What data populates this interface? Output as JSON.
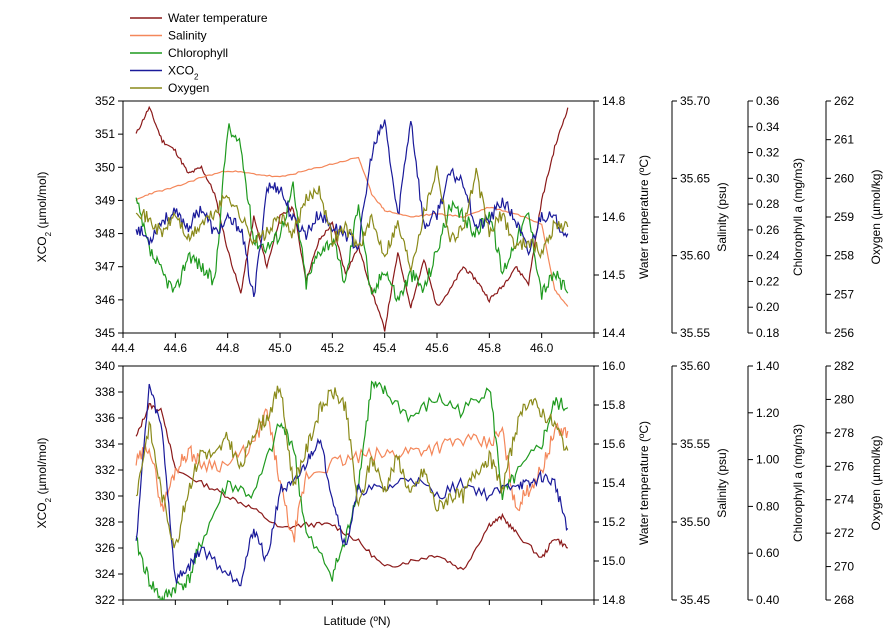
{
  "legend": [
    {
      "name": "Water temperature",
      "color": "#8b1a1a"
    },
    {
      "name": "Salinity",
      "color": "#f4875a"
    },
    {
      "name": "Chlorophyll",
      "color": "#1f9a1f"
    },
    {
      "name": "XCO",
      "sub": "2",
      "color": "#1a1a9a"
    },
    {
      "name": "Oxygen",
      "color": "#8a8a1a"
    }
  ],
  "xlabel": "Latitude (ºN)",
  "chart_data": [
    {
      "type": "line",
      "x_range": [
        44.4,
        46.2
      ],
      "x_ticks": [
        "44.4",
        "44.6",
        "44.8",
        "45.0",
        "45.2",
        "45.4",
        "45.6",
        "45.8",
        "46.0"
      ],
      "left_axis": {
        "label": "XCO",
        "label_sub": "2",
        "label_unit": " (µmol/mol)",
        "range": [
          345,
          352
        ],
        "ticks": [
          "345",
          "346",
          "347",
          "348",
          "349",
          "350",
          "351",
          "352"
        ]
      },
      "right_axes": [
        {
          "label": "Water temperature (ºC)",
          "range": [
            14.4,
            14.8
          ],
          "ticks": [
            "14.4",
            "14.5",
            "14.6",
            "14.7",
            "14.8"
          ]
        },
        {
          "label": "Salinity (psu)",
          "range": [
            35.55,
            35.7
          ],
          "ticks": [
            "35.55",
            "35.60",
            "35.65",
            "35.70"
          ]
        },
        {
          "label": "Chlorophyll a (mg/m3)",
          "range": [
            0.18,
            0.36
          ],
          "ticks": [
            "0.18",
            "0.20",
            "0.22",
            "0.24",
            "0.26",
            "0.28",
            "0.30",
            "0.32",
            "0.34",
            "0.36"
          ]
        },
        {
          "label": "Oxygen (µmol/kg)",
          "range": [
            256,
            262
          ],
          "ticks": [
            "256",
            "257",
            "258",
            "259",
            "260",
            "261",
            "262"
          ]
        }
      ],
      "series": [
        {
          "name": "Water temperature",
          "axis": 0,
          "color": "#8b1a1a",
          "noise": 0.12,
          "seed": 11,
          "x": [
            44.45,
            44.5,
            44.55,
            44.6,
            44.65,
            44.7,
            44.75,
            44.8,
            44.85,
            44.9,
            44.95,
            45.0,
            45.05,
            45.1,
            45.15,
            45.2,
            45.25,
            45.3,
            45.35,
            45.4,
            45.45,
            45.5,
            45.55,
            45.6,
            45.65,
            45.7,
            45.75,
            45.8,
            45.85,
            45.9,
            45.95,
            46.0,
            46.05,
            46.1
          ],
          "y": [
            351.0,
            351.8,
            350.8,
            350.5,
            349.8,
            350.0,
            349.2,
            347.5,
            346.2,
            348.5,
            347.0,
            348.5,
            348.8,
            346.6,
            347.8,
            348.3,
            346.8,
            347.6,
            346.3,
            345.1,
            347.4,
            345.8,
            347.2,
            345.8,
            346.3,
            347.0,
            346.6,
            346.0,
            346.4,
            347.0,
            346.5,
            349.0,
            350.6,
            351.8
          ]
        },
        {
          "name": "Salinity",
          "axis": 1,
          "color": "#f4875a",
          "noise": 0.05,
          "seed": 23,
          "x": [
            44.45,
            44.5,
            44.6,
            44.7,
            44.8,
            44.9,
            45.0,
            45.1,
            45.2,
            45.3,
            45.35,
            45.4,
            45.5,
            45.6,
            45.7,
            45.8,
            45.9,
            46.0,
            46.05,
            46.1
          ],
          "y": [
            349.0,
            349.2,
            349.4,
            349.7,
            349.9,
            349.8,
            349.7,
            349.9,
            350.1,
            350.3,
            349.2,
            348.7,
            348.5,
            348.6,
            348.5,
            348.8,
            348.6,
            348.3,
            346.3,
            345.8
          ]
        },
        {
          "name": "Chlorophyll",
          "axis": 2,
          "color": "#1f9a1f",
          "noise": 0.45,
          "seed": 37,
          "x": [
            44.45,
            44.5,
            44.55,
            44.6,
            44.65,
            44.7,
            44.75,
            44.8,
            44.85,
            44.9,
            44.95,
            45.0,
            45.05,
            45.1,
            45.15,
            45.2,
            45.25,
            45.3,
            45.35,
            45.4,
            45.45,
            45.5,
            45.55,
            45.6,
            45.65,
            45.7,
            45.75,
            45.8,
            45.85,
            45.9,
            45.95,
            46.0,
            46.05,
            46.1
          ],
          "y": [
            349.0,
            347.5,
            346.8,
            346.2,
            347.4,
            347.0,
            346.5,
            351.2,
            350.6,
            347.8,
            347.6,
            348.0,
            349.4,
            346.5,
            347.5,
            347.8,
            346.5,
            349.0,
            346.0,
            347.0,
            346.0,
            346.8,
            346.3,
            347.5,
            348.8,
            348.5,
            348.0,
            348.7,
            346.8,
            347.8,
            348.6,
            346.2,
            346.8,
            346.2
          ]
        },
        {
          "name": "XCO2",
          "axis": -1,
          "color": "#1a1a9a",
          "noise": 0.4,
          "seed": 53,
          "x": [
            44.45,
            44.5,
            44.55,
            44.6,
            44.65,
            44.7,
            44.75,
            44.8,
            44.85,
            44.9,
            44.95,
            45.0,
            45.05,
            45.1,
            45.15,
            45.2,
            45.25,
            45.3,
            45.35,
            45.4,
            45.45,
            45.5,
            45.55,
            45.6,
            45.65,
            45.7,
            45.75,
            45.8,
            45.85,
            45.9,
            45.95,
            46.0,
            46.05,
            46.1
          ],
          "y": [
            348.2,
            347.8,
            348.4,
            348.6,
            348.2,
            348.8,
            348.0,
            348.4,
            348.2,
            346.0,
            349.4,
            349.4,
            348.4,
            348.0,
            348.6,
            348.2,
            348.0,
            347.6,
            350.4,
            351.4,
            348.5,
            351.5,
            348.2,
            348.6,
            349.8,
            349.6,
            348.2,
            348.4,
            349.0,
            348.4,
            347.4,
            348.6,
            348.4,
            348.0
          ]
        },
        {
          "name": "Oxygen",
          "axis": 3,
          "color": "#8a8a1a",
          "noise": 0.4,
          "seed": 71,
          "x": [
            44.45,
            44.5,
            44.55,
            44.6,
            44.65,
            44.7,
            44.75,
            44.8,
            44.85,
            44.9,
            44.95,
            45.0,
            45.05,
            45.1,
            45.15,
            45.2,
            45.25,
            45.3,
            45.35,
            45.4,
            45.45,
            45.5,
            45.55,
            45.6,
            45.65,
            45.7,
            45.75,
            45.8,
            45.85,
            45.9,
            45.95,
            46.0,
            46.05,
            46.1
          ],
          "y": [
            348.8,
            348.4,
            348.0,
            348.6,
            347.8,
            348.3,
            348.6,
            349.2,
            348.5,
            347.8,
            348.0,
            348.5,
            348.0,
            349.0,
            349.4,
            347.8,
            348.2,
            347.6,
            348.4,
            347.4,
            348.3,
            347.0,
            348.6,
            350.0,
            347.8,
            348.2,
            349.8,
            348.0,
            348.6,
            347.6,
            347.8,
            347.4,
            348.3,
            348.2
          ]
        }
      ]
    },
    {
      "type": "line",
      "x_range": [
        44.4,
        46.2
      ],
      "x_ticks": [],
      "left_axis": {
        "label": "XCO",
        "label_sub": "2",
        "label_unit": " (µmol/mol)",
        "range": [
          322,
          340
        ],
        "ticks": [
          "322",
          "324",
          "326",
          "328",
          "330",
          "332",
          "334",
          "336",
          "338",
          "340"
        ]
      },
      "right_axes": [
        {
          "label": "Water temperature (ºC)",
          "range": [
            14.8,
            16.0
          ],
          "ticks": [
            "14.8",
            "15.0",
            "15.2",
            "15.4",
            "15.6",
            "15.8",
            "16.0"
          ]
        },
        {
          "label": "Salinity (psu)",
          "range": [
            35.45,
            35.6
          ],
          "ticks": [
            "35.45",
            "35.50",
            "35.55",
            "35.60"
          ]
        },
        {
          "label": "Chlorophyll a (mg/m3)",
          "range": [
            0.4,
            1.4
          ],
          "ticks": [
            "0.40",
            "0.60",
            "0.80",
            "1.00",
            "1.20",
            "1.40"
          ]
        },
        {
          "label": "Oxygen (µmol/kg)",
          "range": [
            268,
            282
          ],
          "ticks": [
            "268",
            "270",
            "272",
            "274",
            "276",
            "278",
            "280",
            "282"
          ]
        }
      ],
      "series": [
        {
          "name": "Water temperature",
          "axis": 0,
          "color": "#8b1a1a",
          "noise": 0.15,
          "seed": 13,
          "x": [
            44.45,
            44.5,
            44.55,
            44.6,
            44.7,
            44.8,
            44.9,
            45.0,
            45.1,
            45.2,
            45.3,
            45.4,
            45.5,
            45.6,
            45.7,
            45.8,
            45.85,
            45.9,
            46.0,
            46.05,
            46.1
          ],
          "y": [
            334.5,
            337.0,
            336.5,
            332.0,
            331.0,
            330.0,
            329.0,
            327.5,
            327.8,
            327.8,
            326.5,
            324.5,
            325.0,
            325.5,
            324.3,
            327.8,
            328.4,
            327.2,
            325.2,
            326.8,
            326.0
          ]
        },
        {
          "name": "Salinity",
          "axis": 1,
          "color": "#f4875a",
          "noise": 0.45,
          "seed": 29,
          "x": [
            44.45,
            44.5,
            44.55,
            44.6,
            44.65,
            44.7,
            44.8,
            44.9,
            44.95,
            45.0,
            45.05,
            45.1,
            45.2,
            45.3,
            45.4,
            45.5,
            45.6,
            45.7,
            45.8,
            45.85,
            45.9,
            45.95,
            46.0,
            46.05,
            46.1
          ],
          "y": [
            332.5,
            334.0,
            329.0,
            332.0,
            333.5,
            332.5,
            332.4,
            334.0,
            336.5,
            331.0,
            326.5,
            331.5,
            332.5,
            333.0,
            333.2,
            333.5,
            333.8,
            334.3,
            334.0,
            335.0,
            329.0,
            330.5,
            332.0,
            335.0,
            335.0
          ]
        },
        {
          "name": "Chlorophyll",
          "axis": 2,
          "color": "#1f9a1f",
          "noise": 0.45,
          "seed": 41,
          "x": [
            44.45,
            44.5,
            44.55,
            44.6,
            44.65,
            44.7,
            44.8,
            44.9,
            45.0,
            45.05,
            45.1,
            45.2,
            45.25,
            45.3,
            45.35,
            45.4,
            45.5,
            45.6,
            45.7,
            45.8,
            45.85,
            45.9,
            46.0,
            46.05,
            46.1
          ],
          "y": [
            326.5,
            323.5,
            322.0,
            323.0,
            323.5,
            326.5,
            331.0,
            330.0,
            335.5,
            334.0,
            327.0,
            324.0,
            326.5,
            331.0,
            338.5,
            338.0,
            336.0,
            337.5,
            336.5,
            338.5,
            330.0,
            331.5,
            334.0,
            337.2,
            336.8
          ]
        },
        {
          "name": "XCO2",
          "axis": -1,
          "color": "#1a1a9a",
          "noise": 0.35,
          "seed": 59,
          "x": [
            44.45,
            44.5,
            44.55,
            44.6,
            44.65,
            44.7,
            44.8,
            44.85,
            44.9,
            44.95,
            45.0,
            45.05,
            45.1,
            45.15,
            45.2,
            45.25,
            45.3,
            45.4,
            45.5,
            45.6,
            45.7,
            45.8,
            45.9,
            45.95,
            46.0,
            46.05,
            46.1
          ],
          "y": [
            326.5,
            338.5,
            335.0,
            323.5,
            324.5,
            326.0,
            324.0,
            323.5,
            327.5,
            325.0,
            330.5,
            330.8,
            332.5,
            334.5,
            330.0,
            326.0,
            330.5,
            330.5,
            331.5,
            330.0,
            331.0,
            330.0,
            331.0,
            330.8,
            331.5,
            331.0,
            327.5
          ]
        },
        {
          "name": "Oxygen",
          "axis": 3,
          "color": "#8a8a1a",
          "noise": 0.45,
          "seed": 83,
          "x": [
            44.45,
            44.5,
            44.55,
            44.6,
            44.65,
            44.7,
            44.75,
            44.8,
            44.85,
            44.9,
            44.95,
            45.0,
            45.05,
            45.1,
            45.15,
            45.2,
            45.25,
            45.3,
            45.35,
            45.4,
            45.45,
            45.5,
            45.55,
            45.6,
            45.65,
            45.7,
            45.75,
            45.8,
            45.85,
            45.9,
            45.95,
            46.0,
            46.05,
            46.1
          ],
          "y": [
            330.0,
            335.5,
            330.0,
            326.0,
            330.5,
            333.5,
            333.0,
            334.5,
            332.0,
            335.0,
            336.0,
            338.5,
            331.0,
            333.5,
            336.5,
            338.0,
            337.0,
            329.0,
            333.0,
            330.5,
            333.0,
            330.0,
            332.0,
            329.0,
            330.0,
            330.0,
            332.0,
            333.0,
            330.5,
            335.0,
            337.5,
            336.5,
            335.5,
            333.5
          ]
        }
      ]
    }
  ]
}
